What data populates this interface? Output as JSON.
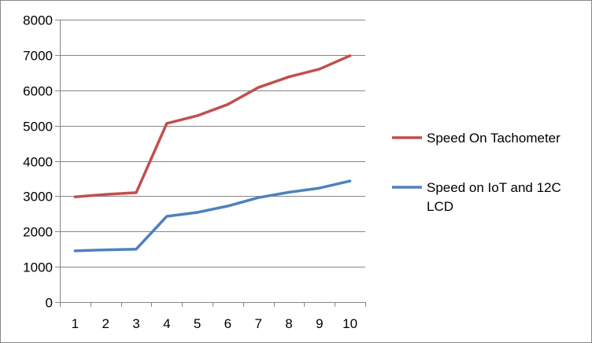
{
  "chart_data": {
    "type": "line",
    "title": "",
    "xlabel": "",
    "ylabel": "",
    "categories": [
      "1",
      "2",
      "3",
      "4",
      "5",
      "6",
      "7",
      "8",
      "9",
      "10"
    ],
    "ylim": [
      0,
      8000
    ],
    "yticks": [
      0,
      1000,
      2000,
      3000,
      4000,
      5000,
      6000,
      7000,
      8000
    ],
    "grid": "horizontal",
    "legend_position": "right",
    "series": [
      {
        "name": "Speed On Tachometer",
        "color": "#c0504d",
        "values": [
          2980,
          3050,
          3100,
          5060,
          5280,
          5600,
          6080,
          6380,
          6600,
          6980
        ]
      },
      {
        "name": "Speed on IoT and 12C LCD",
        "color": "#4f81bd",
        "values": [
          1450,
          1480,
          1500,
          2430,
          2540,
          2720,
          2960,
          3110,
          3230,
          3430
        ]
      }
    ]
  }
}
